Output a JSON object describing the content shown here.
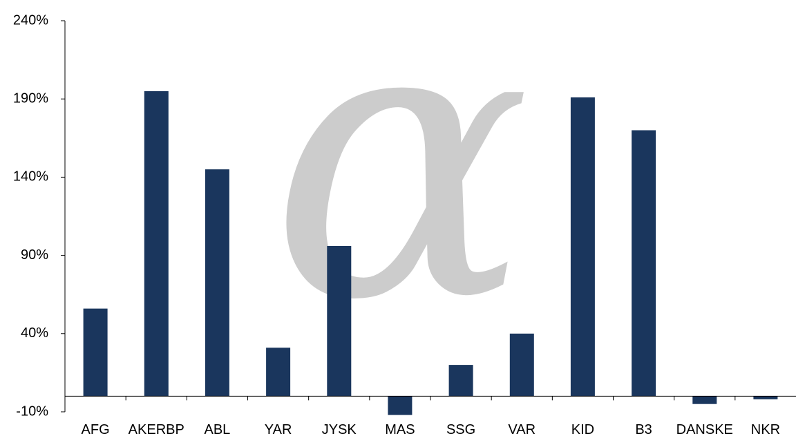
{
  "chart_data": {
    "type": "bar",
    "categories": [
      "AFG",
      "AKERBP",
      "ABL",
      "YAR",
      "JYSK",
      "MAS",
      "SSG",
      "VAR",
      "KID",
      "B3",
      "DANSKE",
      "NKR"
    ],
    "values": [
      56,
      195,
      145,
      31,
      96,
      -12,
      20,
      40,
      191,
      170,
      -5,
      -2
    ],
    "y_ticks": [
      -10,
      40,
      90,
      140,
      190,
      240
    ],
    "y_tick_labels": [
      "-10%",
      "40%",
      "90%",
      "140%",
      "190%",
      "240%"
    ],
    "ylim": [
      -10,
      240
    ],
    "title": "",
    "xlabel": "",
    "ylabel": "",
    "grid": false,
    "legend": "none",
    "bar_color": "#1a365d",
    "axis_color": "#000000"
  },
  "watermark": {
    "glyph": "α",
    "color": "#cccccc"
  }
}
